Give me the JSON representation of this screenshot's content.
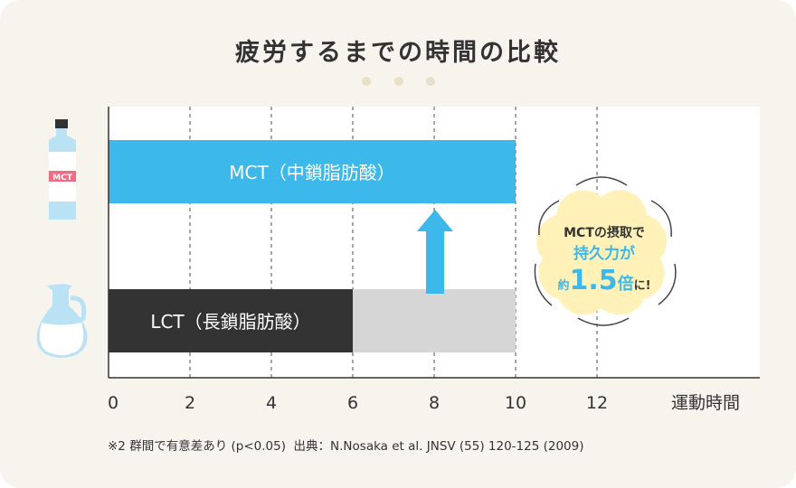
{
  "title": "疲労するまでの時間の比較",
  "chart_data": {
    "type": "bar",
    "orientation": "horizontal",
    "categories": [
      "MCT（中鎖脂肪酸）",
      "LCT（長鎖脂肪酸）"
    ],
    "values": [
      10,
      6
    ],
    "xlabel": "運動時間",
    "xlim": [
      0,
      16
    ],
    "xticks": [
      0,
      2,
      4,
      6,
      8,
      10,
      12
    ],
    "grid": "vertical dashed",
    "colors": {
      "mct": "#3db8ea",
      "lct": "#333333",
      "lct_gap": "#d6d6d6",
      "arrow": "#3db8ea"
    },
    "gap_range": [
      6,
      10
    ],
    "bar_labels": {
      "mct": "MCT（中鎖脂肪酸）",
      "lct": "LCT（長鎖脂肪酸）"
    },
    "icons": {
      "mct": "mct-bottle-icon",
      "lct": "oil-jug-icon",
      "bottle_label": "MCT"
    }
  },
  "callout": {
    "line1": "MCTの摂取で",
    "line2": "持久力が",
    "line3_prefix": "約",
    "line3_number": "1.5",
    "line3_unit": "倍",
    "line3_suffix": "に!"
  },
  "footnote": "※2 群間で有意差あり (p<0.05)  出典：N.Nosaka et al. JNSV (55) 120-125 (2009)"
}
